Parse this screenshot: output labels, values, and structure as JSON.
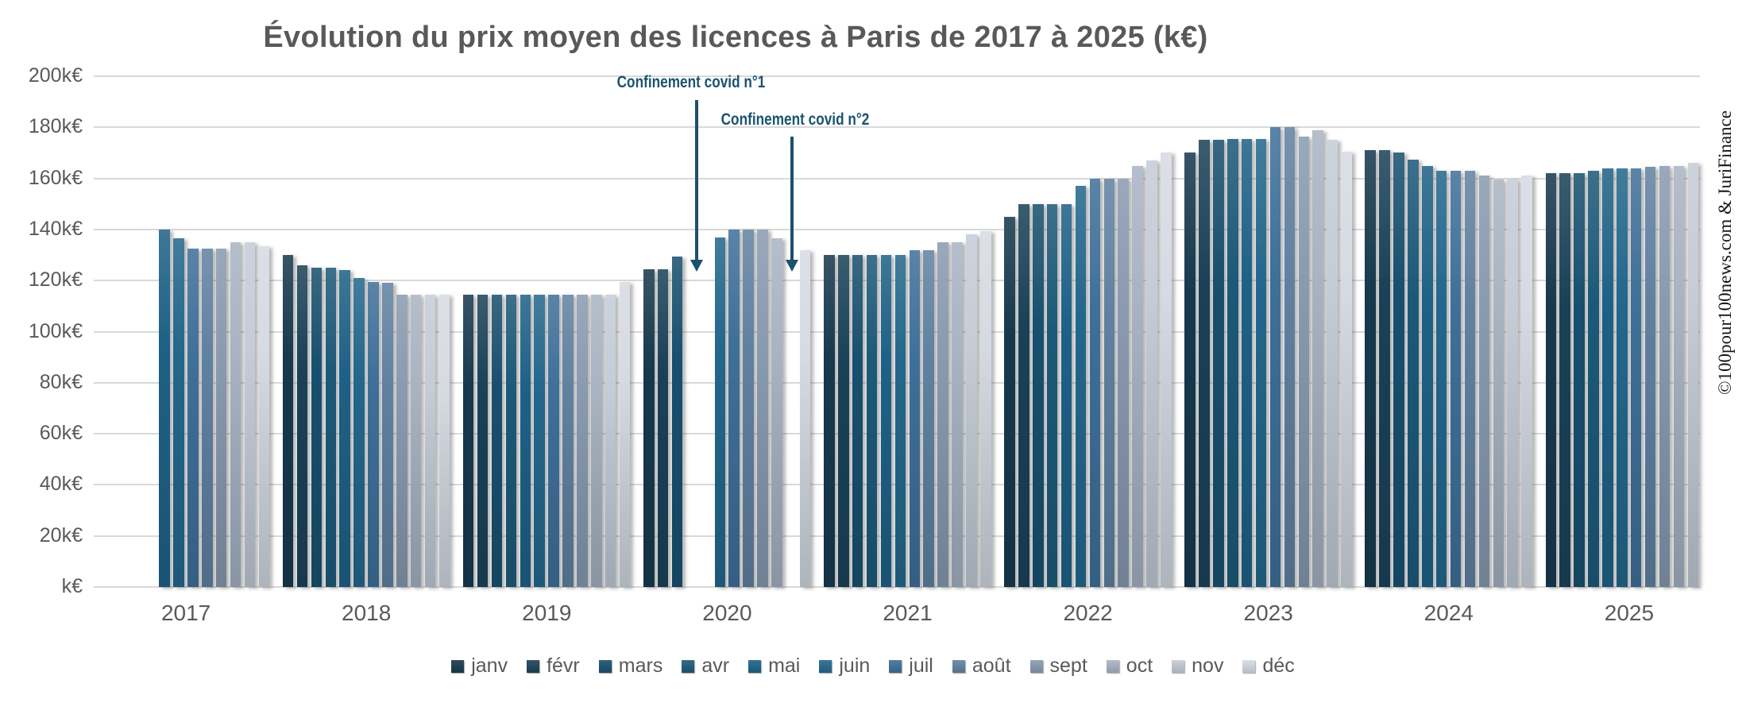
{
  "title": "Évolution du prix moyen des licences à Paris de 2017 à 2025 (k€)",
  "watermark": "©100pour100news.com & JuriFinance",
  "annotations": [
    {
      "text": "Confinement covid n°1"
    },
    {
      "text": "Confinement covid n°2"
    }
  ],
  "y_axis": {
    "labels": [
      "k€",
      "20k€",
      "40k€",
      "60k€",
      "80k€",
      "100k€",
      "120k€",
      "140k€",
      "160k€",
      "180k€",
      "200k€"
    ],
    "step": 20,
    "max": 200
  },
  "chart_data": {
    "type": "bar",
    "title": "Évolution du prix moyen des licences à Paris de 2017 à 2025 (k€)",
    "unit": "k€",
    "ylim": [
      0,
      200
    ],
    "grid": true,
    "legend_position": "bottom",
    "categories": [
      "2017",
      "2018",
      "2019",
      "2020",
      "2021",
      "2022",
      "2023",
      "2024",
      "2025"
    ],
    "note": "Missing bars: janv-avr 2017, avr/mai/nov 2020 (confinements covid), déc 2025",
    "series": [
      {
        "name": "janv",
        "color": "#17384d",
        "values": [
          null,
          130,
          114.5,
          124.5,
          130,
          145,
          170,
          171,
          162
        ]
      },
      {
        "name": "févr",
        "color": "#1a4157",
        "values": [
          null,
          126,
          114.5,
          124.5,
          130,
          150,
          175,
          171,
          162
        ]
      },
      {
        "name": "mars",
        "color": "#184f6e",
        "values": [
          null,
          125,
          114.5,
          129.5,
          130,
          150,
          175,
          170,
          162
        ]
      },
      {
        "name": "avr",
        "color": "#1c5978",
        "values": [
          null,
          125,
          114.5,
          null,
          130,
          150,
          175.5,
          167.5,
          163
        ]
      },
      {
        "name": "mai",
        "color": "#1e6186",
        "values": [
          140,
          124,
          114.5,
          null,
          130,
          150,
          175.5,
          165,
          164
        ]
      },
      {
        "name": "juin",
        "color": "#23678c",
        "values": [
          136.5,
          121,
          114.5,
          137,
          130,
          157,
          175.5,
          163,
          164
        ]
      },
      {
        "name": "juil",
        "color": "#3f7099",
        "values": [
          132.5,
          119.5,
          114.5,
          140,
          132,
          160,
          180,
          163,
          164
        ]
      },
      {
        "name": "août",
        "color": "#6181a1",
        "values": [
          132.5,
          119,
          114.5,
          140,
          132,
          160,
          180,
          163,
          164.5
        ]
      },
      {
        "name": "sept",
        "color": "#8a9ab0",
        "values": [
          132.5,
          114.5,
          114.5,
          140,
          135,
          160,
          176.5,
          161,
          165
        ]
      },
      {
        "name": "oct",
        "color": "#a9b3c2",
        "values": [
          135,
          114.5,
          114.5,
          136.5,
          135,
          165,
          179,
          159.5,
          165
        ]
      },
      {
        "name": "nov",
        "color": "#c5ccd6",
        "values": [
          135,
          114.5,
          114.5,
          null,
          138,
          167,
          175,
          160,
          166
        ]
      },
      {
        "name": "déc",
        "color": "#d6dae2",
        "values": [
          133.5,
          114.5,
          119.5,
          132,
          139.5,
          170,
          170.5,
          161,
          null
        ]
      }
    ]
  }
}
